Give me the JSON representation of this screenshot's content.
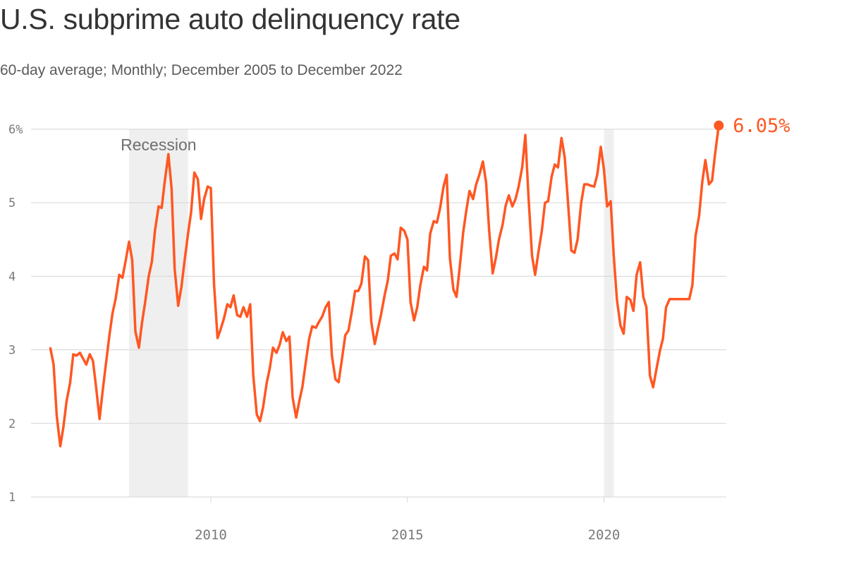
{
  "header": {
    "title": "U.S. subprime auto delinquency rate",
    "subtitle": "60-day average; Monthly; December 2005 to December 2022"
  },
  "colors": {
    "line": "#ff5722",
    "grid": "#d6d6d6",
    "shade": "#efefef",
    "ticks": "#7a7a7a"
  },
  "chart_data": {
    "type": "line",
    "x_unit": "year (decimal, monthly observations)",
    "y_unit": "percent",
    "ylim": [
      1,
      6
    ],
    "y_ticks": [
      {
        "value": 1,
        "label": "1"
      },
      {
        "value": 2,
        "label": "2"
      },
      {
        "value": 3,
        "label": "3"
      },
      {
        "value": 4,
        "label": "4"
      },
      {
        "value": 5,
        "label": "5"
      },
      {
        "value": 6,
        "label": "6%"
      }
    ],
    "xlim": [
      2005.0,
      2023.0
    ],
    "x_ticks": [
      {
        "value": 2010,
        "label": "2010"
      },
      {
        "value": 2015,
        "label": "2015"
      },
      {
        "value": 2020,
        "label": "2020"
      }
    ],
    "grid": true,
    "shaded_regions": [
      {
        "start": 2007.92,
        "end": 2009.42,
        "label": "Recession"
      },
      {
        "start": 2020.0,
        "end": 2020.25,
        "label": ""
      }
    ],
    "end_label": "6.05%",
    "series": [
      {
        "name": "",
        "points": [
          [
            2005.92,
            3.02
          ],
          [
            2006.0,
            2.8
          ],
          [
            2006.08,
            2.1
          ],
          [
            2006.17,
            1.69
          ],
          [
            2006.25,
            1.95
          ],
          [
            2006.33,
            2.3
          ],
          [
            2006.42,
            2.55
          ],
          [
            2006.5,
            2.94
          ],
          [
            2006.58,
            2.92
          ],
          [
            2006.67,
            2.96
          ],
          [
            2006.75,
            2.88
          ],
          [
            2006.83,
            2.8
          ],
          [
            2006.92,
            2.94
          ],
          [
            2007.0,
            2.85
          ],
          [
            2007.08,
            2.5
          ],
          [
            2007.17,
            2.06
          ],
          [
            2007.25,
            2.45
          ],
          [
            2007.33,
            2.8
          ],
          [
            2007.42,
            3.2
          ],
          [
            2007.5,
            3.5
          ],
          [
            2007.58,
            3.7
          ],
          [
            2007.67,
            4.02
          ],
          [
            2007.75,
            3.98
          ],
          [
            2007.83,
            4.2
          ],
          [
            2007.92,
            4.47
          ],
          [
            2008.0,
            4.22
          ],
          [
            2008.08,
            3.25
          ],
          [
            2008.17,
            3.03
          ],
          [
            2008.25,
            3.37
          ],
          [
            2008.33,
            3.65
          ],
          [
            2008.42,
            4.0
          ],
          [
            2008.5,
            4.2
          ],
          [
            2008.58,
            4.62
          ],
          [
            2008.67,
            4.95
          ],
          [
            2008.75,
            4.93
          ],
          [
            2008.83,
            5.3
          ],
          [
            2008.92,
            5.66
          ],
          [
            2009.0,
            5.2
          ],
          [
            2009.08,
            4.1
          ],
          [
            2009.17,
            3.6
          ],
          [
            2009.25,
            3.85
          ],
          [
            2009.33,
            4.2
          ],
          [
            2009.42,
            4.58
          ],
          [
            2009.5,
            4.88
          ],
          [
            2009.58,
            5.41
          ],
          [
            2009.67,
            5.32
          ],
          [
            2009.75,
            4.78
          ],
          [
            2009.83,
            5.05
          ],
          [
            2009.92,
            5.22
          ],
          [
            2010.0,
            5.2
          ],
          [
            2010.08,
            3.9
          ],
          [
            2010.17,
            3.16
          ],
          [
            2010.25,
            3.28
          ],
          [
            2010.33,
            3.42
          ],
          [
            2010.42,
            3.62
          ],
          [
            2010.5,
            3.58
          ],
          [
            2010.58,
            3.74
          ],
          [
            2010.67,
            3.47
          ],
          [
            2010.75,
            3.45
          ],
          [
            2010.83,
            3.58
          ],
          [
            2010.92,
            3.45
          ],
          [
            2011.0,
            3.62
          ],
          [
            2011.08,
            2.65
          ],
          [
            2011.17,
            2.12
          ],
          [
            2011.25,
            2.03
          ],
          [
            2011.33,
            2.22
          ],
          [
            2011.42,
            2.55
          ],
          [
            2011.5,
            2.75
          ],
          [
            2011.58,
            3.03
          ],
          [
            2011.67,
            2.96
          ],
          [
            2011.75,
            3.07
          ],
          [
            2011.83,
            3.24
          ],
          [
            2011.92,
            3.12
          ],
          [
            2012.0,
            3.18
          ],
          [
            2012.08,
            2.35
          ],
          [
            2012.17,
            2.08
          ],
          [
            2012.25,
            2.3
          ],
          [
            2012.33,
            2.5
          ],
          [
            2012.42,
            2.85
          ],
          [
            2012.5,
            3.15
          ],
          [
            2012.58,
            3.32
          ],
          [
            2012.67,
            3.3
          ],
          [
            2012.75,
            3.38
          ],
          [
            2012.83,
            3.45
          ],
          [
            2012.92,
            3.58
          ],
          [
            2013.0,
            3.65
          ],
          [
            2013.08,
            2.92
          ],
          [
            2013.17,
            2.6
          ],
          [
            2013.25,
            2.56
          ],
          [
            2013.33,
            2.85
          ],
          [
            2013.42,
            3.2
          ],
          [
            2013.5,
            3.26
          ],
          [
            2013.58,
            3.5
          ],
          [
            2013.67,
            3.8
          ],
          [
            2013.75,
            3.8
          ],
          [
            2013.83,
            3.9
          ],
          [
            2013.92,
            4.27
          ],
          [
            2014.0,
            4.22
          ],
          [
            2014.08,
            3.38
          ],
          [
            2014.17,
            3.08
          ],
          [
            2014.25,
            3.28
          ],
          [
            2014.33,
            3.48
          ],
          [
            2014.42,
            3.74
          ],
          [
            2014.5,
            3.94
          ],
          [
            2014.58,
            4.28
          ],
          [
            2014.67,
            4.31
          ],
          [
            2014.75,
            4.23
          ],
          [
            2014.83,
            4.66
          ],
          [
            2014.92,
            4.62
          ],
          [
            2015.0,
            4.5
          ],
          [
            2015.08,
            3.65
          ],
          [
            2015.17,
            3.4
          ],
          [
            2015.25,
            3.58
          ],
          [
            2015.33,
            3.88
          ],
          [
            2015.42,
            4.13
          ],
          [
            2015.5,
            4.08
          ],
          [
            2015.58,
            4.58
          ],
          [
            2015.67,
            4.75
          ],
          [
            2015.75,
            4.73
          ],
          [
            2015.83,
            4.92
          ],
          [
            2015.92,
            5.22
          ],
          [
            2016.0,
            5.38
          ],
          [
            2016.08,
            4.25
          ],
          [
            2016.17,
            3.82
          ],
          [
            2016.25,
            3.72
          ],
          [
            2016.33,
            4.12
          ],
          [
            2016.42,
            4.6
          ],
          [
            2016.5,
            4.9
          ],
          [
            2016.58,
            5.16
          ],
          [
            2016.67,
            5.05
          ],
          [
            2016.75,
            5.25
          ],
          [
            2016.83,
            5.38
          ],
          [
            2016.92,
            5.56
          ],
          [
            2017.0,
            5.28
          ],
          [
            2017.08,
            4.62
          ],
          [
            2017.17,
            4.04
          ],
          [
            2017.25,
            4.25
          ],
          [
            2017.33,
            4.5
          ],
          [
            2017.42,
            4.7
          ],
          [
            2017.5,
            4.96
          ],
          [
            2017.58,
            5.1
          ],
          [
            2017.67,
            4.95
          ],
          [
            2017.75,
            5.05
          ],
          [
            2017.83,
            5.22
          ],
          [
            2017.92,
            5.48
          ],
          [
            2018.0,
            5.92
          ],
          [
            2018.08,
            5.08
          ],
          [
            2018.17,
            4.28
          ],
          [
            2018.25,
            4.02
          ],
          [
            2018.33,
            4.32
          ],
          [
            2018.42,
            4.62
          ],
          [
            2018.5,
            5.0
          ],
          [
            2018.58,
            5.02
          ],
          [
            2018.67,
            5.36
          ],
          [
            2018.75,
            5.52
          ],
          [
            2018.83,
            5.48
          ],
          [
            2018.92,
            5.88
          ],
          [
            2019.0,
            5.62
          ],
          [
            2019.08,
            5.05
          ],
          [
            2019.17,
            4.35
          ],
          [
            2019.25,
            4.32
          ],
          [
            2019.33,
            4.5
          ],
          [
            2019.42,
            5.0
          ],
          [
            2019.5,
            5.25
          ],
          [
            2019.58,
            5.25
          ],
          [
            2019.67,
            5.23
          ],
          [
            2019.75,
            5.22
          ],
          [
            2019.83,
            5.38
          ],
          [
            2019.92,
            5.76
          ],
          [
            2020.0,
            5.45
          ],
          [
            2020.08,
            4.95
          ],
          [
            2020.17,
            5.02
          ],
          [
            2020.25,
            4.28
          ],
          [
            2020.33,
            3.68
          ],
          [
            2020.42,
            3.33
          ],
          [
            2020.5,
            3.22
          ],
          [
            2020.58,
            3.72
          ],
          [
            2020.67,
            3.68
          ],
          [
            2020.75,
            3.53
          ],
          [
            2020.83,
            4.02
          ],
          [
            2020.92,
            4.19
          ],
          [
            2021.0,
            3.72
          ],
          [
            2021.08,
            3.58
          ],
          [
            2021.17,
            2.65
          ],
          [
            2021.25,
            2.49
          ],
          [
            2021.33,
            2.72
          ],
          [
            2021.42,
            2.98
          ],
          [
            2021.5,
            3.15
          ],
          [
            2021.58,
            3.58
          ],
          [
            2021.67,
            3.69
          ],
          [
            2021.75,
            3.69
          ],
          [
            2021.83,
            3.69
          ],
          [
            2021.92,
            3.69
          ],
          [
            2022.0,
            3.69
          ],
          [
            2022.08,
            3.69
          ],
          [
            2022.17,
            3.69
          ],
          [
            2022.25,
            3.88
          ],
          [
            2022.33,
            4.55
          ],
          [
            2022.42,
            4.82
          ],
          [
            2022.5,
            5.28
          ],
          [
            2022.58,
            5.58
          ],
          [
            2022.67,
            5.25
          ],
          [
            2022.75,
            5.3
          ],
          [
            2022.83,
            5.68
          ],
          [
            2022.92,
            6.05
          ]
        ]
      }
    ]
  }
}
